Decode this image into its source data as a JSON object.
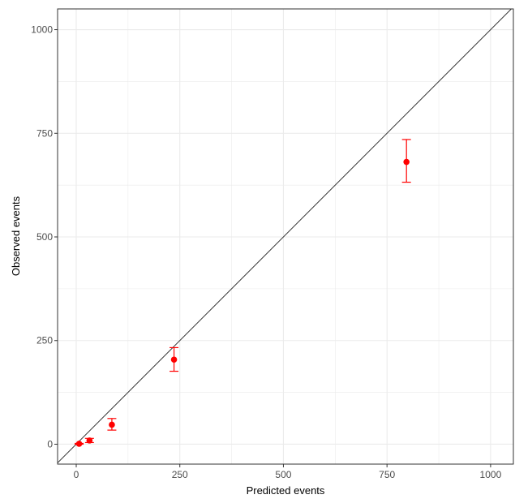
{
  "chart_data": {
    "type": "scatter",
    "xlabel": "Predicted events",
    "ylabel": "Observed events",
    "xlim": [
      -45,
      1055
    ],
    "ylim": [
      -48,
      1050
    ],
    "xticks": [
      0,
      250,
      500,
      750,
      1000
    ],
    "yticks": [
      0,
      250,
      500,
      750,
      1000
    ],
    "grid": true,
    "reference_line": "y = x",
    "points": [
      {
        "x": 7,
        "y": 1,
        "lower": 0,
        "upper": 2
      },
      {
        "x": 32,
        "y": 9,
        "lower": 4,
        "upper": 14
      },
      {
        "x": 86,
        "y": 47,
        "lower": 34,
        "upper": 62
      },
      {
        "x": 236,
        "y": 204,
        "lower": 176,
        "upper": 233
      },
      {
        "x": 797,
        "y": 681,
        "lower": 632,
        "upper": 735
      }
    ],
    "colors": {
      "points": "#ff0000",
      "reference_line": "#333333",
      "grid": "#ebebeb",
      "panel_border": "#333333"
    }
  }
}
